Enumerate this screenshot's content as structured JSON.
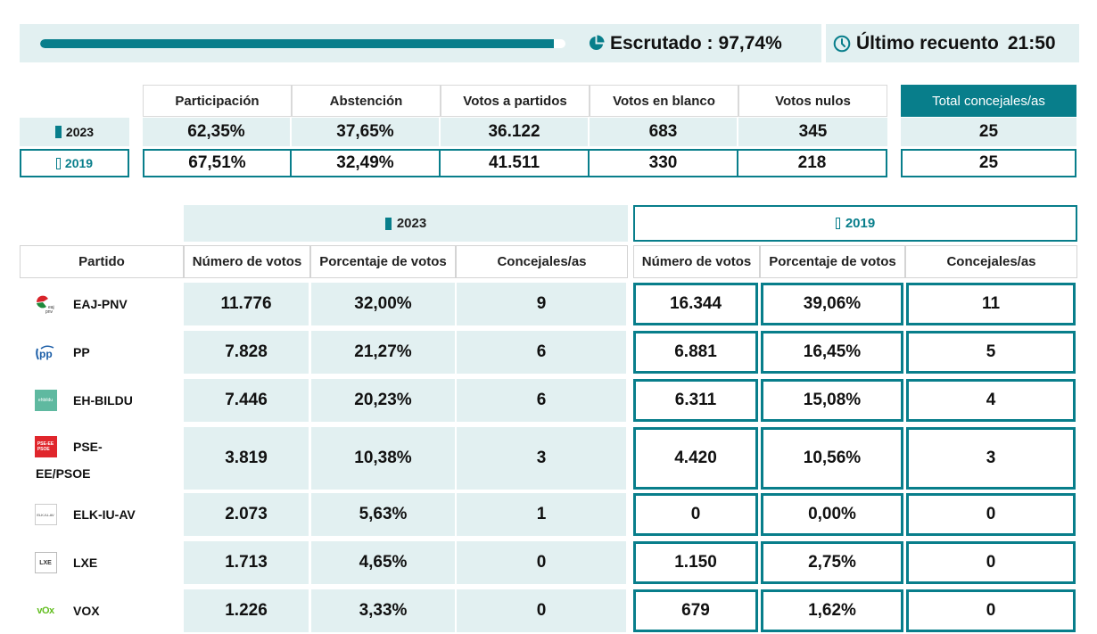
{
  "status": {
    "progress_percent": 97.74,
    "escrutado_label": "Escrutado :",
    "escrutado_value": "97,74%",
    "ultimo_recuento_label": "Último recuento",
    "ultimo_recuento_time": "21:50",
    "icons": {
      "escrutado": "pie-chart-icon",
      "recuento": "clock-icon"
    }
  },
  "summary": {
    "headers": [
      "Participación",
      "Abstención",
      "Votos a partidos",
      "Votos en blanco",
      "Votos nulos"
    ],
    "total_header": "Total concejales/as",
    "rows": [
      {
        "year": "2023",
        "values": [
          "62,35%",
          "37,65%",
          "36.122",
          "683",
          "345"
        ],
        "total": "25"
      },
      {
        "year": "2019",
        "values": [
          "67,51%",
          "32,49%",
          "41.511",
          "330",
          "218"
        ],
        "total": "25"
      }
    ]
  },
  "results": {
    "year_2023": "2023",
    "year_2019": "2019",
    "party_header": "Partido",
    "columns": [
      "Número de votos",
      "Porcentaje de votos",
      "Concejales/as"
    ],
    "parties": [
      {
        "name": "EAJ-PNV",
        "logo": "eaj-pnv-logo",
        "y2023": [
          "11.776",
          "32,00%",
          "9"
        ],
        "y2019": [
          "16.344",
          "39,06%",
          "11"
        ]
      },
      {
        "name": "PP",
        "logo": "pp-logo",
        "y2023": [
          "7.828",
          "21,27%",
          "6"
        ],
        "y2019": [
          "6.881",
          "16,45%",
          "5"
        ]
      },
      {
        "name": "EH-BILDU",
        "logo": "eh-bildu-logo",
        "logo_text": "ehbildu",
        "y2023": [
          "7.446",
          "20,23%",
          "6"
        ],
        "y2019": [
          "6.311",
          "15,08%",
          "4"
        ]
      },
      {
        "name": "PSE-",
        "name_line2": "EE/PSOE",
        "logo": "pse-psoe-logo",
        "logo_text": "PSE-EE PSOE",
        "y2023": [
          "3.819",
          "10,38%",
          "3"
        ],
        "y2019": [
          "4.420",
          "10,56%",
          "3"
        ]
      },
      {
        "name": "ELK-IU-AV",
        "logo": "elk-iu-av-logo",
        "logo_text": "ELK-IU-AV",
        "y2023": [
          "2.073",
          "5,63%",
          "1"
        ],
        "y2019": [
          "0",
          "0,00%",
          "0"
        ]
      },
      {
        "name": "LXE",
        "logo": "lxe-logo",
        "logo_text": "LXE",
        "y2023": [
          "1.713",
          "4,65%",
          "0"
        ],
        "y2019": [
          "1.150",
          "2,75%",
          "0"
        ]
      },
      {
        "name": "VOX",
        "logo": "vox-logo",
        "logo_text": "VOX",
        "y2023": [
          "1.226",
          "3,33%",
          "0"
        ],
        "y2019": [
          "679",
          "1,62%",
          "0"
        ]
      }
    ]
  },
  "colors": {
    "accent": "#087e8b",
    "light_bg": "#e2f0f1"
  }
}
